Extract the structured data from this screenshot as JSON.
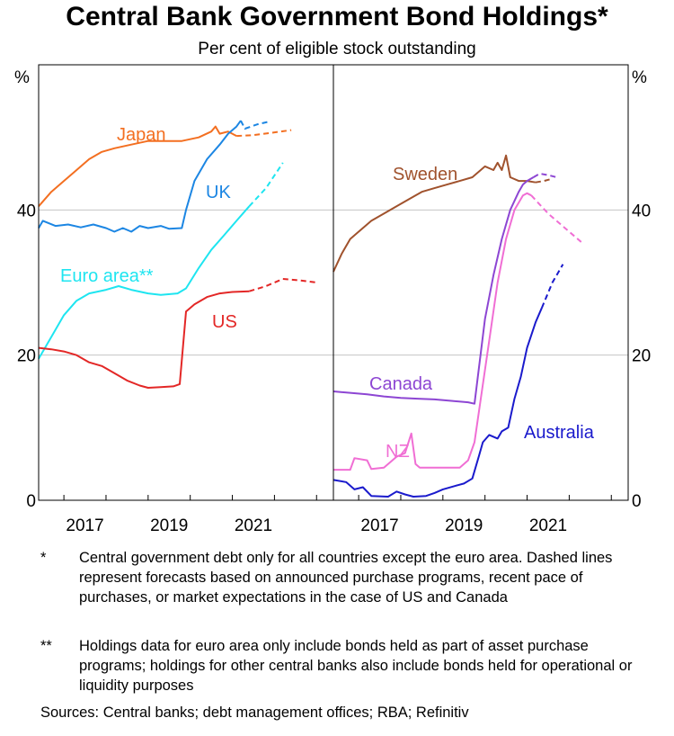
{
  "title": "Central Bank Government Bond Holdings*",
  "subtitle": "Per cent of eligible stock outstanding",
  "notes": [
    {
      "mark": "*",
      "text": "Central government debt only for all countries except the euro area. Dashed lines represent forecasts based on announced purchase programs, recent pace of purchases, or market expectations in the case of US and Canada"
    },
    {
      "mark": "**",
      "text": "Holdings data for euro area only include bonds held as part of asset purchase programs; holdings for other central banks also include bonds held for operational or liquidity purposes"
    }
  ],
  "sources": "Sources: Central banks; debt management offices; RBA; Refinitiv",
  "chart_data": [
    {
      "type": "line",
      "unit": "%",
      "ylim": [
        0,
        60
      ],
      "yticks": [
        0,
        20,
        40
      ],
      "xlim": [
        2016.4,
        2023.4
      ],
      "xticks": [
        2017,
        2019,
        2021
      ],
      "grid": true,
      "series": [
        {
          "name": "Japan",
          "color": "#f36f21",
          "actual": [
            [
              2016.4,
              40.5
            ],
            [
              2016.7,
              42.5
            ],
            [
              2017.0,
              44
            ],
            [
              2017.3,
              45.5
            ],
            [
              2017.6,
              47
            ],
            [
              2017.9,
              48
            ],
            [
              2018.2,
              48.5
            ],
            [
              2018.6,
              49
            ],
            [
              2019.0,
              49.5
            ],
            [
              2019.4,
              49.5
            ],
            [
              2019.8,
              49.5
            ],
            [
              2020.2,
              50
            ],
            [
              2020.5,
              50.8
            ],
            [
              2020.6,
              51.5
            ],
            [
              2020.7,
              50.5
            ],
            [
              2020.9,
              50.8
            ],
            [
              2021.1,
              50.2
            ]
          ],
          "forecast": [
            [
              2021.1,
              50.2
            ],
            [
              2021.5,
              50.3
            ],
            [
              2021.9,
              50.6
            ],
            [
              2022.4,
              51
            ]
          ]
        },
        {
          "name": "UK",
          "color": "#1c86e3",
          "actual": [
            [
              2016.4,
              37.5
            ],
            [
              2016.5,
              38.5
            ],
            [
              2016.8,
              37.8
            ],
            [
              2017.1,
              38
            ],
            [
              2017.4,
              37.6
            ],
            [
              2017.7,
              38
            ],
            [
              2018.0,
              37.5
            ],
            [
              2018.2,
              37
            ],
            [
              2018.4,
              37.5
            ],
            [
              2018.6,
              37
            ],
            [
              2018.8,
              37.8
            ],
            [
              2019.0,
              37.5
            ],
            [
              2019.3,
              37.8
            ],
            [
              2019.5,
              37.4
            ],
            [
              2019.8,
              37.5
            ],
            [
              2019.9,
              40
            ],
            [
              2020.1,
              44
            ],
            [
              2020.4,
              47
            ],
            [
              2020.7,
              49
            ],
            [
              2020.9,
              50.5
            ],
            [
              2021.1,
              51.5
            ],
            [
              2021.2,
              52.3
            ]
          ],
          "forecast": [
            [
              2021.2,
              52.3
            ],
            [
              2021.3,
              51.2
            ],
            [
              2021.6,
              51.8
            ],
            [
              2021.9,
              52.2
            ]
          ]
        },
        {
          "name": "Euro area**",
          "color": "#1ee5f0",
          "actual": [
            [
              2016.4,
              19.5
            ],
            [
              2016.7,
              22.5
            ],
            [
              2017.0,
              25.5
            ],
            [
              2017.3,
              27.5
            ],
            [
              2017.6,
              28.5
            ],
            [
              2018.0,
              29
            ],
            [
              2018.3,
              29.5
            ],
            [
              2018.6,
              29
            ],
            [
              2019.0,
              28.5
            ],
            [
              2019.3,
              28.3
            ],
            [
              2019.7,
              28.5
            ],
            [
              2019.9,
              29.2
            ],
            [
              2020.2,
              32
            ],
            [
              2020.5,
              34.5
            ],
            [
              2020.8,
              36.5
            ],
            [
              2021.1,
              38.5
            ],
            [
              2021.4,
              40.5
            ]
          ],
          "forecast": [
            [
              2021.4,
              40.5
            ],
            [
              2021.8,
              43
            ],
            [
              2022.2,
              46.5
            ]
          ]
        },
        {
          "name": "US",
          "color": "#e32726",
          "actual": [
            [
              2016.4,
              21
            ],
            [
              2016.7,
              20.8
            ],
            [
              2017.0,
              20.5
            ],
            [
              2017.3,
              20
            ],
            [
              2017.6,
              19
            ],
            [
              2017.9,
              18.5
            ],
            [
              2018.2,
              17.5
            ],
            [
              2018.5,
              16.5
            ],
            [
              2018.8,
              15.8
            ],
            [
              2019.0,
              15.5
            ],
            [
              2019.3,
              15.6
            ],
            [
              2019.6,
              15.7
            ],
            [
              2019.75,
              16
            ],
            [
              2019.9,
              26
            ],
            [
              2020.1,
              27
            ],
            [
              2020.4,
              28
            ],
            [
              2020.7,
              28.5
            ],
            [
              2021.0,
              28.7
            ],
            [
              2021.4,
              28.8
            ]
          ],
          "forecast": [
            [
              2021.4,
              28.8
            ],
            [
              2021.8,
              29.5
            ],
            [
              2022.2,
              30.5
            ],
            [
              2022.6,
              30.3
            ],
            [
              2023.0,
              30
            ]
          ]
        }
      ]
    },
    {
      "type": "line",
      "unit": "%",
      "ylim": [
        0,
        60
      ],
      "yticks": [
        0,
        20,
        40
      ],
      "xlim": [
        2016.4,
        2023.4
      ],
      "xticks": [
        2017,
        2019,
        2021
      ],
      "grid": true,
      "series": [
        {
          "name": "Sweden",
          "color": "#a0522d",
          "actual": [
            [
              2016.4,
              31.5
            ],
            [
              2016.6,
              34
            ],
            [
              2016.8,
              36
            ],
            [
              2017.0,
              37
            ],
            [
              2017.3,
              38.5
            ],
            [
              2017.6,
              39.5
            ],
            [
              2017.9,
              40.5
            ],
            [
              2018.2,
              41.5
            ],
            [
              2018.5,
              42.5
            ],
            [
              2018.8,
              43
            ],
            [
              2019.1,
              43.5
            ],
            [
              2019.4,
              44
            ],
            [
              2019.7,
              44.5
            ],
            [
              2020.0,
              46
            ],
            [
              2020.2,
              45.5
            ],
            [
              2020.3,
              46.5
            ],
            [
              2020.4,
              45.5
            ],
            [
              2020.5,
              47.5
            ],
            [
              2020.6,
              44.5
            ],
            [
              2020.8,
              44
            ],
            [
              2021.0,
              44
            ],
            [
              2021.2,
              43.8
            ]
          ],
          "forecast": [
            [
              2021.2,
              43.8
            ],
            [
              2021.4,
              44
            ],
            [
              2021.6,
              44.3
            ]
          ]
        },
        {
          "name": "Canada",
          "color": "#8d46d3",
          "actual": [
            [
              2016.4,
              15
            ],
            [
              2016.8,
              14.8
            ],
            [
              2017.2,
              14.6
            ],
            [
              2017.6,
              14.3
            ],
            [
              2018.0,
              14.1
            ],
            [
              2018.4,
              14
            ],
            [
              2018.8,
              13.9
            ],
            [
              2019.2,
              13.7
            ],
            [
              2019.6,
              13.5
            ],
            [
              2019.75,
              13.3
            ],
            [
              2019.85,
              18
            ],
            [
              2020.0,
              25
            ],
            [
              2020.2,
              31
            ],
            [
              2020.4,
              36
            ],
            [
              2020.6,
              40
            ],
            [
              2020.8,
              42.5
            ],
            [
              2020.9,
              43.5
            ],
            [
              2021.0,
              44
            ],
            [
              2021.15,
              44.5
            ]
          ],
          "forecast": [
            [
              2021.15,
              44.5
            ],
            [
              2021.3,
              45
            ],
            [
              2021.5,
              44.8
            ],
            [
              2021.7,
              44.5
            ]
          ]
        },
        {
          "name": "NZ",
          "color": "#f06ed4",
          "actual": [
            [
              2016.4,
              4.2
            ],
            [
              2016.8,
              4.2
            ],
            [
              2016.9,
              5.8
            ],
            [
              2017.2,
              5.5
            ],
            [
              2017.3,
              4.3
            ],
            [
              2017.6,
              4.5
            ],
            [
              2017.9,
              6
            ],
            [
              2018.1,
              6.5
            ],
            [
              2018.25,
              9.2
            ],
            [
              2018.35,
              5
            ],
            [
              2018.45,
              4.5
            ],
            [
              2019.0,
              4.5
            ],
            [
              2019.4,
              4.5
            ],
            [
              2019.6,
              5.5
            ],
            [
              2019.75,
              8
            ],
            [
              2019.9,
              14
            ],
            [
              2020.1,
              22
            ],
            [
              2020.3,
              30
            ],
            [
              2020.5,
              36
            ],
            [
              2020.7,
              40
            ],
            [
              2020.9,
              42
            ],
            [
              2021.0,
              42.3
            ],
            [
              2021.1,
              42
            ]
          ],
          "forecast": [
            [
              2021.1,
              42
            ],
            [
              2021.5,
              39.5
            ],
            [
              2021.9,
              37.5
            ],
            [
              2022.3,
              35.5
            ]
          ]
        },
        {
          "name": "Australia",
          "color": "#1a1acc",
          "actual": [
            [
              2016.4,
              2.8
            ],
            [
              2016.7,
              2.5
            ],
            [
              2016.9,
              1.5
            ],
            [
              2017.1,
              1.8
            ],
            [
              2017.3,
              0.6
            ],
            [
              2017.7,
              0.5
            ],
            [
              2017.9,
              1.2
            ],
            [
              2018.1,
              0.8
            ],
            [
              2018.3,
              0.5
            ],
            [
              2018.6,
              0.6
            ],
            [
              2018.8,
              1
            ],
            [
              2019.0,
              1.5
            ],
            [
              2019.3,
              2
            ],
            [
              2019.5,
              2.3
            ],
            [
              2019.7,
              3
            ],
            [
              2019.85,
              6
            ],
            [
              2019.95,
              8
            ],
            [
              2020.1,
              9
            ],
            [
              2020.3,
              8.5
            ],
            [
              2020.4,
              9.5
            ],
            [
              2020.55,
              10
            ],
            [
              2020.7,
              14
            ],
            [
              2020.85,
              17
            ],
            [
              2021.0,
              21
            ],
            [
              2021.2,
              24.5
            ],
            [
              2021.35,
              26.5
            ]
          ],
          "forecast": [
            [
              2021.35,
              26.5
            ],
            [
              2021.6,
              30
            ],
            [
              2021.85,
              32.5
            ]
          ]
        }
      ]
    }
  ]
}
